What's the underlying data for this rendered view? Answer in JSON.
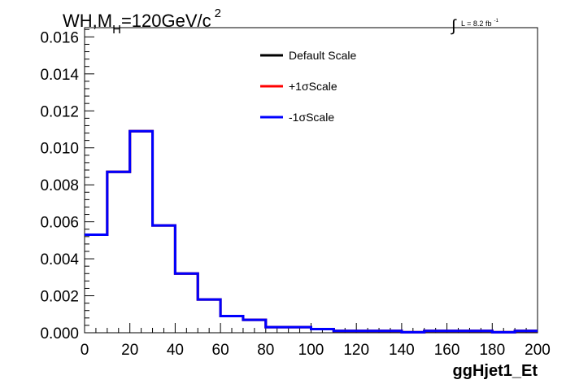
{
  "chart_data": {
    "type": "line",
    "title": {
      "prefix": "WH,M",
      "subscript": "H",
      "middle": "=120GeV/c",
      "superscript": "2"
    },
    "lumi_label": {
      "integral": "∫",
      "text": "L = 8.2 fb",
      "superscript": "-1"
    },
    "xlabel": "ggHjet1_Et",
    "ylabel": "",
    "xlim": [
      0,
      200
    ],
    "ylim": [
      0,
      0.0165
    ],
    "x_ticks": [
      "0",
      "20",
      "40",
      "60",
      "80",
      "100",
      "120",
      "140",
      "160",
      "180",
      "200"
    ],
    "y_ticks": [
      "0.000",
      "0.002",
      "0.004",
      "0.006",
      "0.008",
      "0.010",
      "0.012",
      "0.014",
      "0.016"
    ],
    "bin_edges": [
      0,
      10,
      20,
      30,
      40,
      50,
      60,
      70,
      80,
      90,
      100,
      110,
      120,
      130,
      140,
      150,
      160,
      170,
      180,
      190,
      200
    ],
    "series": [
      {
        "name": "Default Scale",
        "color": "#000000",
        "values": [
          0.0053,
          0.0087,
          0.0109,
          0.0058,
          0.0032,
          0.0018,
          0.0009,
          0.0007,
          0.0003,
          0.0003,
          0.0002,
          0.0001,
          0.0001,
          0.0001,
          3e-05,
          0.0001,
          0.0001,
          0.0001,
          3e-05,
          0.0001
        ]
      },
      {
        "name": "+1σScale",
        "color": "#ff0000",
        "values": [
          0.0053,
          0.0087,
          0.0109,
          0.0058,
          0.0032,
          0.0018,
          0.0009,
          0.0007,
          0.0003,
          0.0003,
          0.0002,
          0.0001,
          0.0001,
          0.0001,
          3e-05,
          0.0001,
          0.0001,
          0.0001,
          3e-05,
          0.0001
        ]
      },
      {
        "name": "-1σScale",
        "color": "#0000ff",
        "values": [
          0.0053,
          0.0087,
          0.0109,
          0.0058,
          0.0032,
          0.0018,
          0.0009,
          0.0007,
          0.0003,
          0.0003,
          0.0002,
          0.0001,
          0.0001,
          0.0001,
          3e-05,
          0.0001,
          0.0001,
          0.0001,
          3e-05,
          0.0001
        ]
      }
    ],
    "legend_position": "top-center",
    "grid": false
  }
}
